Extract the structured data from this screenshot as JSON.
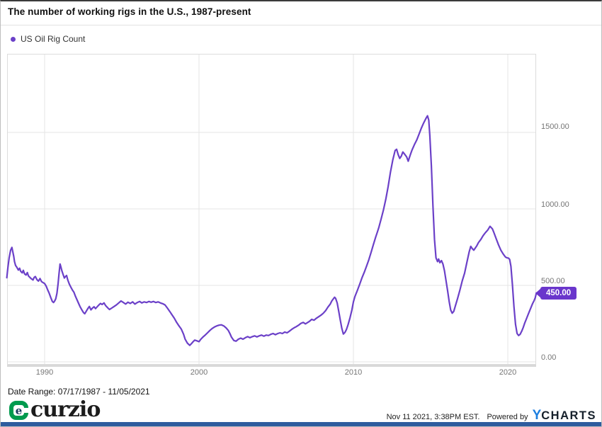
{
  "title": "The number of working rigs in the U.S., 1987-present",
  "legend": {
    "label": "US Oil Rig Count"
  },
  "current_value": "450.00",
  "colors": {
    "line": "#6b40c8",
    "badge": "#6a36cc",
    "curzio_green": "#009a4e",
    "ycharts_blue": "#1d7fe0",
    "bottom_bar": "#2e5c9e",
    "grid": "#e4e4e4",
    "tick_text": "#757575"
  },
  "footer": {
    "date_range": "Date Range: 07/17/1987 - 11/05/2021",
    "curzio_mark": "e",
    "curzio_text": "curzio",
    "timestamp": "Nov 11 2021, 3:38PM EST.",
    "powered_by": "Powered by",
    "ycharts_y": "Y",
    "ycharts_charts": "CHARTS"
  },
  "chart_data": {
    "type": "line",
    "title": "The number of working rigs in the U.S., 1987-present",
    "series_name": "US Oil Rig Count",
    "xlabel": "",
    "ylabel": "",
    "grid": true,
    "legend_position": "top-left",
    "x_ticks": [
      {
        "label": "1990",
        "year": 1990
      },
      {
        "label": "2000",
        "year": 2000
      },
      {
        "label": "2010",
        "year": 2010
      },
      {
        "label": "2020",
        "year": 2020
      }
    ],
    "y_ticks": [
      {
        "label": "1500.00",
        "value": 1500
      },
      {
        "label": "1000.00",
        "value": 1000
      },
      {
        "label": "500.00",
        "value": 500
      },
      {
        "label": "0.00",
        "value": 0
      }
    ],
    "xlim": [
      1987.5,
      2022.0
    ],
    "ylim": [
      0,
      2015
    ],
    "last_value": 450,
    "points": [
      [
        1987.55,
        550
      ],
      [
        1987.62,
        615
      ],
      [
        1987.7,
        680
      ],
      [
        1987.8,
        730
      ],
      [
        1987.88,
        748
      ],
      [
        1987.95,
        715
      ],
      [
        1988.0,
        690
      ],
      [
        1988.05,
        655
      ],
      [
        1988.12,
        630
      ],
      [
        1988.2,
        618
      ],
      [
        1988.3,
        600
      ],
      [
        1988.38,
        612
      ],
      [
        1988.45,
        592
      ],
      [
        1988.55,
        582
      ],
      [
        1988.62,
        598
      ],
      [
        1988.7,
        575
      ],
      [
        1988.8,
        568
      ],
      [
        1988.88,
        584
      ],
      [
        1988.95,
        562
      ],
      [
        1989.05,
        552
      ],
      [
        1989.15,
        542
      ],
      [
        1989.25,
        535
      ],
      [
        1989.32,
        552
      ],
      [
        1989.4,
        558
      ],
      [
        1989.5,
        538
      ],
      [
        1989.6,
        528
      ],
      [
        1989.7,
        545
      ],
      [
        1989.8,
        525
      ],
      [
        1989.9,
        518
      ],
      [
        1990.0,
        512
      ],
      [
        1990.1,
        495
      ],
      [
        1990.2,
        470
      ],
      [
        1990.3,
        448
      ],
      [
        1990.4,
        420
      ],
      [
        1990.5,
        395
      ],
      [
        1990.58,
        388
      ],
      [
        1990.65,
        398
      ],
      [
        1990.72,
        412
      ],
      [
        1990.8,
        448
      ],
      [
        1990.87,
        510
      ],
      [
        1990.93,
        575
      ],
      [
        1991.0,
        640
      ],
      [
        1991.05,
        622
      ],
      [
        1991.12,
        595
      ],
      [
        1991.2,
        570
      ],
      [
        1991.28,
        548
      ],
      [
        1991.35,
        558
      ],
      [
        1991.42,
        565
      ],
      [
        1991.5,
        535
      ],
      [
        1991.6,
        508
      ],
      [
        1991.7,
        488
      ],
      [
        1991.8,
        470
      ],
      [
        1991.9,
        455
      ],
      [
        1992.0,
        428
      ],
      [
        1992.1,
        405
      ],
      [
        1992.2,
        382
      ],
      [
        1992.3,
        360
      ],
      [
        1992.42,
        338
      ],
      [
        1992.52,
        322
      ],
      [
        1992.6,
        315
      ],
      [
        1992.7,
        332
      ],
      [
        1992.8,
        348
      ],
      [
        1992.9,
        362
      ],
      [
        1993.0,
        340
      ],
      [
        1993.1,
        352
      ],
      [
        1993.2,
        360
      ],
      [
        1993.3,
        348
      ],
      [
        1993.42,
        362
      ],
      [
        1993.52,
        372
      ],
      [
        1993.62,
        382
      ],
      [
        1993.72,
        375
      ],
      [
        1993.85,
        385
      ],
      [
        1993.95,
        368
      ],
      [
        1994.1,
        352
      ],
      [
        1994.2,
        342
      ],
      [
        1994.35,
        352
      ],
      [
        1994.5,
        362
      ],
      [
        1994.65,
        372
      ],
      [
        1994.8,
        385
      ],
      [
        1994.95,
        398
      ],
      [
        1995.1,
        388
      ],
      [
        1995.25,
        378
      ],
      [
        1995.4,
        390
      ],
      [
        1995.55,
        382
      ],
      [
        1995.7,
        392
      ],
      [
        1995.85,
        378
      ],
      [
        1996.0,
        388
      ],
      [
        1996.15,
        395
      ],
      [
        1996.3,
        385
      ],
      [
        1996.45,
        392
      ],
      [
        1996.6,
        388
      ],
      [
        1996.75,
        395
      ],
      [
        1996.9,
        390
      ],
      [
        1997.05,
        395
      ],
      [
        1997.2,
        388
      ],
      [
        1997.35,
        392
      ],
      [
        1997.5,
        385
      ],
      [
        1997.65,
        380
      ],
      [
        1997.8,
        372
      ],
      [
        1997.95,
        352
      ],
      [
        1998.1,
        330
      ],
      [
        1998.25,
        308
      ],
      [
        1998.4,
        285
      ],
      [
        1998.55,
        258
      ],
      [
        1998.7,
        235
      ],
      [
        1998.85,
        215
      ],
      [
        1999.0,
        180
      ],
      [
        1999.1,
        148
      ],
      [
        1999.25,
        122
      ],
      [
        1999.4,
        108
      ],
      [
        1999.5,
        118
      ],
      [
        1999.62,
        132
      ],
      [
        1999.72,
        142
      ],
      [
        1999.85,
        138
      ],
      [
        2000.0,
        132
      ],
      [
        2000.12,
        148
      ],
      [
        2000.25,
        162
      ],
      [
        2000.4,
        175
      ],
      [
        2000.55,
        190
      ],
      [
        2000.7,
        205
      ],
      [
        2000.85,
        218
      ],
      [
        2001.0,
        228
      ],
      [
        2001.15,
        235
      ],
      [
        2001.3,
        240
      ],
      [
        2001.45,
        242
      ],
      [
        2001.6,
        235
      ],
      [
        2001.75,
        222
      ],
      [
        2001.9,
        205
      ],
      [
        2002.0,
        185
      ],
      [
        2002.1,
        162
      ],
      [
        2002.25,
        140
      ],
      [
        2002.4,
        135
      ],
      [
        2002.55,
        148
      ],
      [
        2002.7,
        155
      ],
      [
        2002.85,
        148
      ],
      [
        2003.0,
        158
      ],
      [
        2003.15,
        165
      ],
      [
        2003.3,
        158
      ],
      [
        2003.45,
        165
      ],
      [
        2003.6,
        170
      ],
      [
        2003.75,
        163
      ],
      [
        2003.9,
        170
      ],
      [
        2004.05,
        175
      ],
      [
        2004.2,
        168
      ],
      [
        2004.35,
        175
      ],
      [
        2004.5,
        172
      ],
      [
        2004.65,
        180
      ],
      [
        2004.8,
        185
      ],
      [
        2004.95,
        178
      ],
      [
        2005.1,
        185
      ],
      [
        2005.25,
        190
      ],
      [
        2005.4,
        185
      ],
      [
        2005.55,
        195
      ],
      [
        2005.7,
        190
      ],
      [
        2005.85,
        200
      ],
      [
        2006.0,
        212
      ],
      [
        2006.15,
        222
      ],
      [
        2006.3,
        230
      ],
      [
        2006.45,
        240
      ],
      [
        2006.6,
        252
      ],
      [
        2006.75,
        258
      ],
      [
        2006.9,
        248
      ],
      [
        2007.0,
        255
      ],
      [
        2007.15,
        265
      ],
      [
        2007.3,
        278
      ],
      [
        2007.45,
        272
      ],
      [
        2007.6,
        285
      ],
      [
        2007.75,
        295
      ],
      [
        2007.9,
        305
      ],
      [
        2008.05,
        318
      ],
      [
        2008.2,
        335
      ],
      [
        2008.35,
        358
      ],
      [
        2008.5,
        378
      ],
      [
        2008.6,
        398
      ],
      [
        2008.7,
        412
      ],
      [
        2008.78,
        422
      ],
      [
        2008.85,
        415
      ],
      [
        2008.95,
        385
      ],
      [
        2009.05,
        330
      ],
      [
        2009.15,
        272
      ],
      [
        2009.25,
        218
      ],
      [
        2009.35,
        182
      ],
      [
        2009.45,
        192
      ],
      [
        2009.55,
        212
      ],
      [
        2009.65,
        242
      ],
      [
        2009.78,
        288
      ],
      [
        2009.9,
        338
      ],
      [
        2010.0,
        392
      ],
      [
        2010.1,
        428
      ],
      [
        2010.25,
        465
      ],
      [
        2010.4,
        505
      ],
      [
        2010.55,
        548
      ],
      [
        2010.7,
        585
      ],
      [
        2010.85,
        625
      ],
      [
        2011.0,
        668
      ],
      [
        2011.15,
        718
      ],
      [
        2011.3,
        768
      ],
      [
        2011.45,
        818
      ],
      [
        2011.55,
        848
      ],
      [
        2011.65,
        880
      ],
      [
        2011.8,
        935
      ],
      [
        2011.95,
        995
      ],
      [
        2012.1,
        1065
      ],
      [
        2012.25,
        1145
      ],
      [
        2012.4,
        1240
      ],
      [
        2012.55,
        1320
      ],
      [
        2012.7,
        1382
      ],
      [
        2012.8,
        1390
      ],
      [
        2012.9,
        1355
      ],
      [
        2013.0,
        1330
      ],
      [
        2013.1,
        1345
      ],
      [
        2013.2,
        1372
      ],
      [
        2013.3,
        1360
      ],
      [
        2013.45,
        1340
      ],
      [
        2013.55,
        1312
      ],
      [
        2013.68,
        1352
      ],
      [
        2013.8,
        1385
      ],
      [
        2013.95,
        1420
      ],
      [
        2014.1,
        1450
      ],
      [
        2014.25,
        1488
      ],
      [
        2014.4,
        1528
      ],
      [
        2014.55,
        1562
      ],
      [
        2014.7,
        1592
      ],
      [
        2014.8,
        1609
      ],
      [
        2014.88,
        1580
      ],
      [
        2014.95,
        1480
      ],
      [
        2015.05,
        1280
      ],
      [
        2015.15,
        1020
      ],
      [
        2015.25,
        800
      ],
      [
        2015.35,
        680
      ],
      [
        2015.45,
        655
      ],
      [
        2015.52,
        672
      ],
      [
        2015.6,
        648
      ],
      [
        2015.7,
        662
      ],
      [
        2015.8,
        640
      ],
      [
        2015.9,
        595
      ],
      [
        2016.0,
        530
      ],
      [
        2016.1,
        465
      ],
      [
        2016.2,
        395
      ],
      [
        2016.3,
        340
      ],
      [
        2016.4,
        318
      ],
      [
        2016.5,
        330
      ],
      [
        2016.6,
        365
      ],
      [
        2016.75,
        415
      ],
      [
        2016.9,
        470
      ],
      [
        2017.05,
        530
      ],
      [
        2017.2,
        580
      ],
      [
        2017.35,
        650
      ],
      [
        2017.5,
        720
      ],
      [
        2017.6,
        755
      ],
      [
        2017.7,
        740
      ],
      [
        2017.8,
        730
      ],
      [
        2017.9,
        745
      ],
      [
        2018.0,
        760
      ],
      [
        2018.1,
        780
      ],
      [
        2018.25,
        800
      ],
      [
        2018.4,
        825
      ],
      [
        2018.55,
        845
      ],
      [
        2018.7,
        862
      ],
      [
        2018.85,
        886
      ],
      [
        2019.0,
        870
      ],
      [
        2019.1,
        845
      ],
      [
        2019.25,
        805
      ],
      [
        2019.4,
        765
      ],
      [
        2019.55,
        730
      ],
      [
        2019.7,
        705
      ],
      [
        2019.85,
        685
      ],
      [
        2019.95,
        680
      ],
      [
        2020.05,
        678
      ],
      [
        2020.12,
        670
      ],
      [
        2020.2,
        625
      ],
      [
        2020.3,
        505
      ],
      [
        2020.4,
        360
      ],
      [
        2020.5,
        245
      ],
      [
        2020.6,
        185
      ],
      [
        2020.7,
        172
      ],
      [
        2020.8,
        180
      ],
      [
        2020.9,
        200
      ],
      [
        2021.0,
        225
      ],
      [
        2021.1,
        255
      ],
      [
        2021.2,
        280
      ],
      [
        2021.3,
        305
      ],
      [
        2021.4,
        330
      ],
      [
        2021.5,
        355
      ],
      [
        2021.6,
        380
      ],
      [
        2021.7,
        400
      ],
      [
        2021.78,
        420
      ],
      [
        2021.85,
        450
      ]
    ]
  }
}
